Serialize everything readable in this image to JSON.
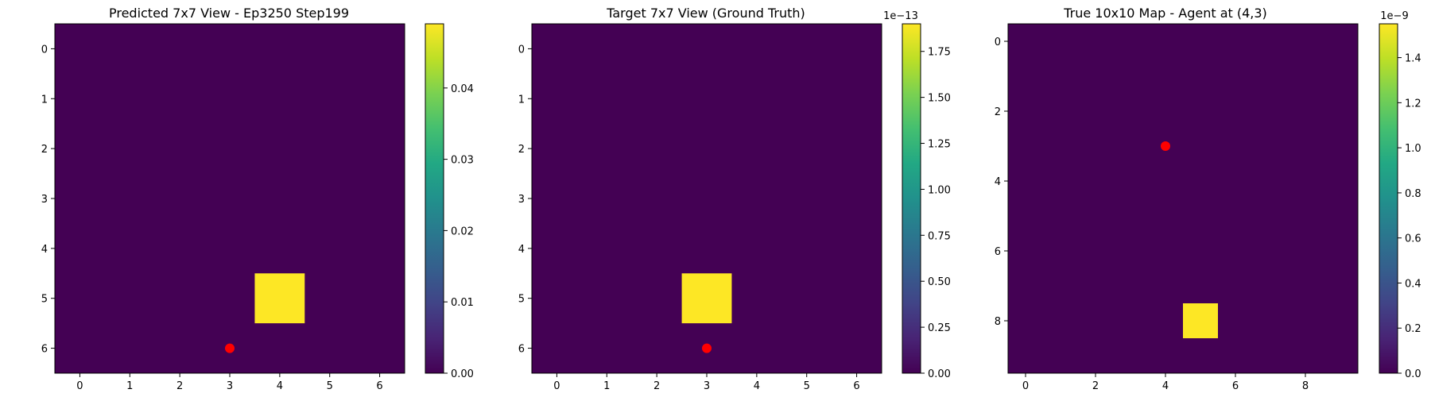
{
  "chart_data": [
    {
      "type": "heatmap",
      "title": "Predicted 7x7 View - Ep3250 Step199",
      "grid": [
        7,
        7
      ],
      "x_ticks": [
        0,
        1,
        2,
        3,
        4,
        5,
        6
      ],
      "y_ticks": [
        0,
        1,
        2,
        3,
        4,
        5,
        6
      ],
      "background_value": 0,
      "hot_cells": [
        {
          "row": 5,
          "col": 4,
          "value": 0.049
        }
      ],
      "agent_marker": {
        "row": 6,
        "col": 3,
        "color": "#ff0000"
      },
      "colorbar": {
        "min": 0,
        "max": 0.049,
        "ticks": [
          "0.00",
          "0.01",
          "0.02",
          "0.03",
          "0.04"
        ],
        "tick_values": [
          0,
          0.01,
          0.02,
          0.03,
          0.04
        ],
        "offset_label": ""
      }
    },
    {
      "type": "heatmap",
      "title": "Target 7x7 View (Ground Truth)",
      "grid": [
        7,
        7
      ],
      "x_ticks": [
        0,
        1,
        2,
        3,
        4,
        5,
        6
      ],
      "y_ticks": [
        0,
        1,
        2,
        3,
        4,
        5,
        6
      ],
      "background_value": 0,
      "hot_cells": [
        {
          "row": 5,
          "col": 3,
          "value": 1.9e-13
        }
      ],
      "agent_marker": {
        "row": 6,
        "col": 3,
        "color": "#ff0000"
      },
      "colorbar": {
        "min": 0,
        "max": 1.9,
        "ticks": [
          "0.00",
          "0.25",
          "0.50",
          "0.75",
          "1.00",
          "1.25",
          "1.50",
          "1.75"
        ],
        "tick_values": [
          0,
          0.25,
          0.5,
          0.75,
          1.0,
          1.25,
          1.5,
          1.75
        ],
        "offset_label": "1e−13"
      }
    },
    {
      "type": "heatmap",
      "title": "True 10x10 Map - Agent at (4,3)",
      "grid": [
        10,
        10
      ],
      "x_ticks": [
        0,
        2,
        4,
        6,
        8
      ],
      "y_ticks": [
        0,
        2,
        4,
        6,
        8
      ],
      "background_value": 0,
      "hot_cells": [
        {
          "row": 8,
          "col": 5,
          "value": 1.55e-09
        }
      ],
      "agent_marker": {
        "row": 3,
        "col": 4,
        "color": "#ff0000"
      },
      "colorbar": {
        "min": 0,
        "max": 1.55,
        "ticks": [
          "0.0",
          "0.2",
          "0.4",
          "0.6",
          "0.8",
          "1.0",
          "1.2",
          "1.4"
        ],
        "tick_values": [
          0,
          0.2,
          0.4,
          0.6,
          0.8,
          1.0,
          1.2,
          1.4
        ],
        "offset_label": "1e−9"
      }
    }
  ],
  "colors": {
    "low": "#440154",
    "high": "#fde725",
    "marker": "#ff0000"
  }
}
